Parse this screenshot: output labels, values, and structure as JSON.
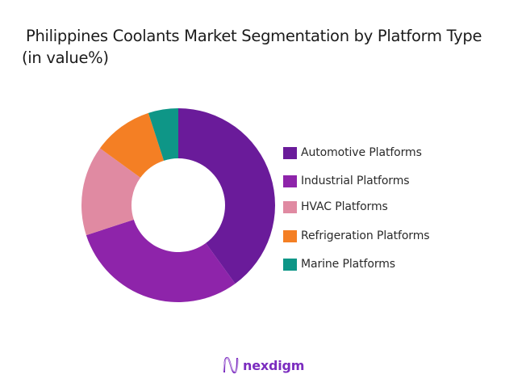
{
  "title": {
    "line1": "Philippines Coolants Market Segmentation by Platform Type",
    "line2": "(in value%)"
  },
  "chart_data": {
    "type": "pie",
    "variant": "donut",
    "title": "Philippines Coolants Market Segmentation by Platform Type (in value%)",
    "categories": [
      "Automotive Platforms",
      "Industrial Platforms",
      "HVAC Platforms",
      "Refrigeration Platforms",
      "Marine Platforms"
    ],
    "values": [
      40,
      30,
      15,
      10,
      5
    ],
    "colors": [
      "#6A1B9A",
      "#8E24AA",
      "#E08AA2",
      "#F47F24",
      "#0E9687"
    ],
    "unit": "%",
    "start_angle_deg": 0,
    "direction": "clockwise",
    "legend_position": "right",
    "data_labels": false
  },
  "legend": {
    "items": [
      {
        "label": "Automotive Platforms",
        "color": "#6A1B9A"
      },
      {
        "label": "Industrial Platforms",
        "color": "#8E24AA"
      },
      {
        "label": "HVAC Platforms",
        "color": "#E08AA2"
      },
      {
        "label": "Refrigeration Platforms",
        "color": "#F47F24"
      },
      {
        "label": "Marine Platforms",
        "color": "#0E9687"
      }
    ]
  },
  "branding": {
    "logo_text": "nexdigm",
    "logo_icon": "nexdigm-wave-n-icon",
    "color": "#7B2CBF"
  }
}
